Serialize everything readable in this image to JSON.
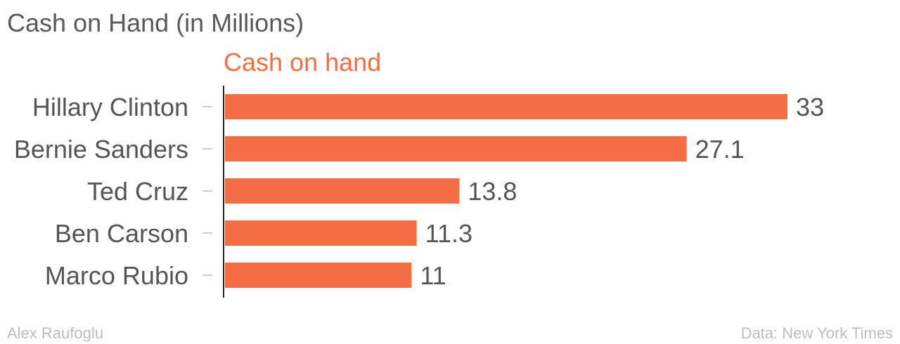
{
  "chart_data": {
    "type": "bar",
    "orientation": "horizontal",
    "title": "Cash on Hand (in Millions)",
    "series": [
      {
        "name": "Cash on hand",
        "values": [
          33,
          27.1,
          13.8,
          11.3,
          11
        ]
      }
    ],
    "categories": [
      "Hillary Clinton",
      "Bernie Sanders",
      "Ted Cruz",
      "Ben Carson",
      "Marco Rubio"
    ],
    "value_labels": [
      "33",
      "27.1",
      "13.8",
      "11.3",
      "11"
    ],
    "xlim": [
      0,
      33
    ],
    "grid": false,
    "legend": "top-left",
    "colors": {
      "bar": "#f46d43",
      "axis": "#222222",
      "tick": "#cccccc",
      "text": "#555555"
    }
  },
  "footer": {
    "author": "Alex Raufoglu",
    "source": "Data: New York Times"
  }
}
